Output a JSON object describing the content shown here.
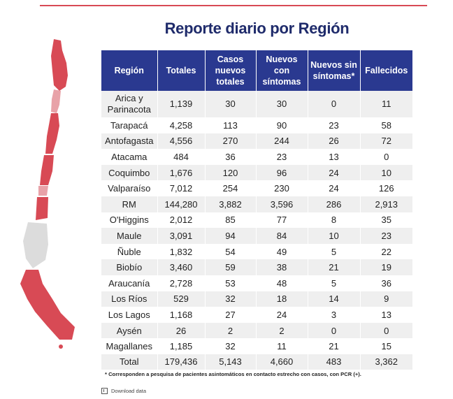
{
  "title": "Reporte diario por Región",
  "headers": [
    "Región",
    "Totales",
    "Casos nuevos totales",
    "Nuevos con síntomas",
    "Nuevos sin síntomas*",
    "Fallecidos"
  ],
  "rows": [
    [
      "Arica y Parinacota",
      "1,139",
      "30",
      "30",
      "0",
      "11"
    ],
    [
      "Tarapacá",
      "4,258",
      "113",
      "90",
      "23",
      "58"
    ],
    [
      "Antofagasta",
      "4,556",
      "270",
      "244",
      "26",
      "72"
    ],
    [
      "Atacama",
      "484",
      "36",
      "23",
      "13",
      "0"
    ],
    [
      "Coquimbo",
      "1,676",
      "120",
      "96",
      "24",
      "10"
    ],
    [
      "Valparaíso",
      "7,012",
      "254",
      "230",
      "24",
      "126"
    ],
    [
      "RM",
      "144,280",
      "3,882",
      "3,596",
      "286",
      "2,913"
    ],
    [
      "O'Higgins",
      "2,012",
      "85",
      "77",
      "8",
      "35"
    ],
    [
      "Maule",
      "3,091",
      "94",
      "84",
      "10",
      "23"
    ],
    [
      "Ñuble",
      "1,832",
      "54",
      "49",
      "5",
      "22"
    ],
    [
      "Biobío",
      "3,460",
      "59",
      "38",
      "21",
      "19"
    ],
    [
      "Araucanía",
      "2,728",
      "53",
      "48",
      "5",
      "36"
    ],
    [
      "Los Ríos",
      "529",
      "32",
      "18",
      "14",
      "9"
    ],
    [
      "Los Lagos",
      "1,168",
      "27",
      "24",
      "3",
      "13"
    ],
    [
      "Aysén",
      "26",
      "2",
      "2",
      "0",
      "0"
    ],
    [
      "Magallanes",
      "1,185",
      "32",
      "11",
      "21",
      "15"
    ]
  ],
  "total": [
    "Total",
    "179,436",
    "5,143",
    "4,660",
    "483",
    "3,362"
  ],
  "note": "* Corresponden a pesquisa de pacientes asintomáticos en contacto estrecho con casos, con PCR (+).",
  "download_label": "Download data",
  "colors": {
    "header": "#2a3990",
    "map_red": "#d84a55",
    "map_light": "#e8a2a8",
    "map_grey": "#dcdcdc"
  }
}
